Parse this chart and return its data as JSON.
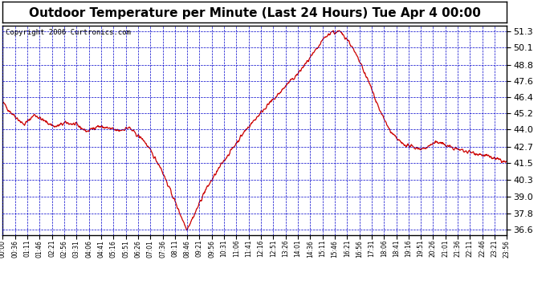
{
  "title": "Outdoor Temperature per Minute (Last 24 Hours) Tue Apr 4 00:00",
  "copyright": "Copyright 2006 Curtronics.com",
  "yticks": [
    36.6,
    37.8,
    39.0,
    40.3,
    41.5,
    42.7,
    44.0,
    45.2,
    46.4,
    47.6,
    48.8,
    50.1,
    51.3
  ],
  "ylim": [
    36.2,
    51.7
  ],
  "xtick_labels": [
    "00:00",
    "00:36",
    "01:11",
    "01:46",
    "02:21",
    "02:56",
    "03:31",
    "04:06",
    "04:41",
    "05:16",
    "05:51",
    "06:26",
    "07:01",
    "07:36",
    "08:11",
    "08:46",
    "09:21",
    "09:56",
    "10:31",
    "11:06",
    "11:41",
    "12:16",
    "12:51",
    "13:26",
    "14:01",
    "14:36",
    "15:11",
    "15:46",
    "16:21",
    "16:56",
    "17:31",
    "18:06",
    "18:41",
    "19:16",
    "19:51",
    "20:26",
    "21:01",
    "21:36",
    "22:11",
    "22:46",
    "23:21",
    "23:56"
  ],
  "line_color": "#cc0000",
  "bg_color": "#ffffff",
  "plot_bg_color": "#ffffff",
  "grid_color": "#0000cc",
  "title_color": "#000000",
  "title_fontsize": 11,
  "copyright_fontsize": 6.5
}
